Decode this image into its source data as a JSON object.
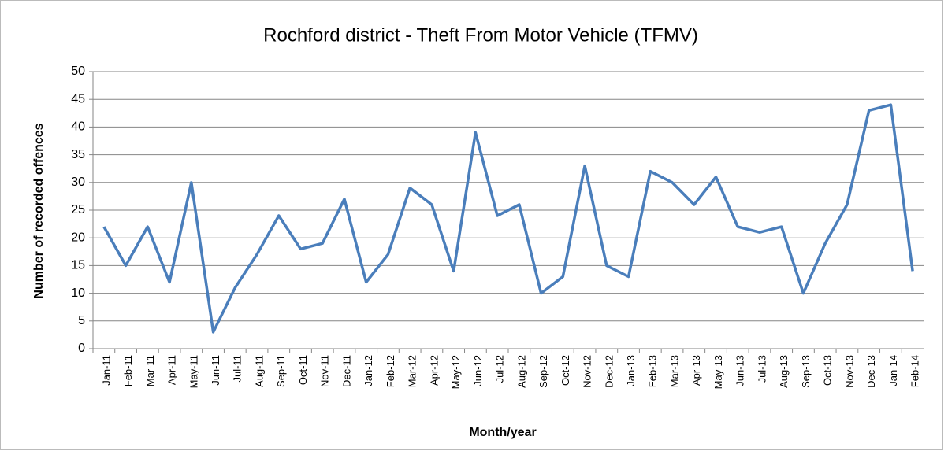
{
  "chart_data": {
    "type": "line",
    "title": "Rochford district - Theft From Motor Vehicle (TFMV)",
    "x_label": "Month/year",
    "y_label": "Number of recorded offences",
    "categories": [
      "Jan-11",
      "Feb-11",
      "Mar-11",
      "Apr-11",
      "May-11",
      "Jun-11",
      "Jul-11",
      "Aug-11",
      "Sep-11",
      "Oct-11",
      "Nov-11",
      "Dec-11",
      "Jan-12",
      "Feb-12",
      "Mar-12",
      "Apr-12",
      "May-12",
      "Jun-12",
      "Jul-12",
      "Aug-12",
      "Sep-12",
      "Oct-12",
      "Nov-12",
      "Dec-12",
      "Jan-13",
      "Feb-13",
      "Mar-13",
      "Apr-13",
      "May-13",
      "Jun-13",
      "Jul-13",
      "Aug-13",
      "Sep-13",
      "Oct-13",
      "Nov-13",
      "Dec-13",
      "Jan-14",
      "Feb-14"
    ],
    "values": [
      22,
      15,
      22,
      12,
      30,
      3,
      11,
      17,
      24,
      18,
      19,
      27,
      12,
      17,
      29,
      26,
      14,
      39,
      24,
      26,
      10,
      13,
      33,
      15,
      13,
      32,
      30,
      26,
      31,
      22,
      21,
      22,
      10,
      19,
      26,
      43,
      44,
      14
    ],
    "color": "#4a7ebb",
    "ylim": [
      0,
      50
    ],
    "yticks": [
      0,
      5,
      10,
      15,
      20,
      25,
      30,
      35,
      40,
      45,
      50
    ],
    "grid": true
  }
}
